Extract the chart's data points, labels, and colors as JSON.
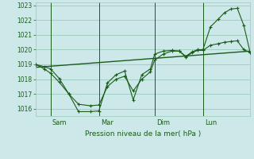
{
  "title": "",
  "xlabel": "Pression niveau de la mer( hPa )",
  "bg_color": "#cce8e8",
  "grid_color": "#99ccbb",
  "line_color": "#1a5c1a",
  "tick_color": "#1a5c1a",
  "label_color": "#1a5c1a",
  "ylim": [
    1015.5,
    1023.2
  ],
  "yticks": [
    1016,
    1017,
    1018,
    1019,
    1020,
    1021,
    1022,
    1023
  ],
  "xlim": [
    0,
    1.0
  ],
  "vlines_x": [
    0.07,
    0.295,
    0.555,
    0.78
  ],
  "vlines_labels": [
    "Sam",
    "Mar",
    "Dim",
    "Lun"
  ],
  "series1_x": [
    0.0,
    0.04,
    0.07,
    0.11,
    0.155,
    0.2,
    0.255,
    0.295,
    0.335,
    0.375,
    0.415,
    0.455,
    0.495,
    0.535,
    0.555,
    0.595,
    0.635,
    0.67,
    0.7,
    0.73,
    0.755,
    0.78,
    0.815,
    0.85,
    0.88,
    0.91,
    0.94,
    0.97,
    1.0
  ],
  "series1_y": [
    1019.0,
    1018.85,
    1018.7,
    1018.05,
    1017.0,
    1015.8,
    1015.8,
    1015.85,
    1017.75,
    1018.3,
    1018.55,
    1016.6,
    1018.3,
    1018.7,
    1019.7,
    1019.9,
    1019.95,
    1019.9,
    1019.55,
    1019.85,
    1020.0,
    1020.0,
    1021.55,
    1022.05,
    1022.5,
    1022.75,
    1022.8,
    1021.65,
    1019.8
  ],
  "series2_x": [
    0.0,
    0.04,
    0.07,
    0.11,
    0.155,
    0.2,
    0.255,
    0.295,
    0.335,
    0.375,
    0.415,
    0.455,
    0.495,
    0.535,
    0.555,
    0.595,
    0.635,
    0.67,
    0.7,
    0.73,
    0.755,
    0.78,
    0.815,
    0.85,
    0.88,
    0.91,
    0.94,
    0.97,
    1.0
  ],
  "series2_y": [
    1019.0,
    1018.7,
    1018.4,
    1017.8,
    1017.0,
    1016.3,
    1016.2,
    1016.25,
    1017.5,
    1018.0,
    1018.2,
    1017.2,
    1018.0,
    1018.5,
    1019.3,
    1019.7,
    1019.9,
    1019.9,
    1019.5,
    1019.8,
    1019.95,
    1019.95,
    1020.3,
    1020.4,
    1020.5,
    1020.55,
    1020.6,
    1020.0,
    1019.8
  ],
  "trend_x": [
    0.0,
    1.0
  ],
  "trend_y": [
    1018.8,
    1019.9
  ],
  "figsize": [
    3.2,
    2.0
  ],
  "dpi": 100
}
